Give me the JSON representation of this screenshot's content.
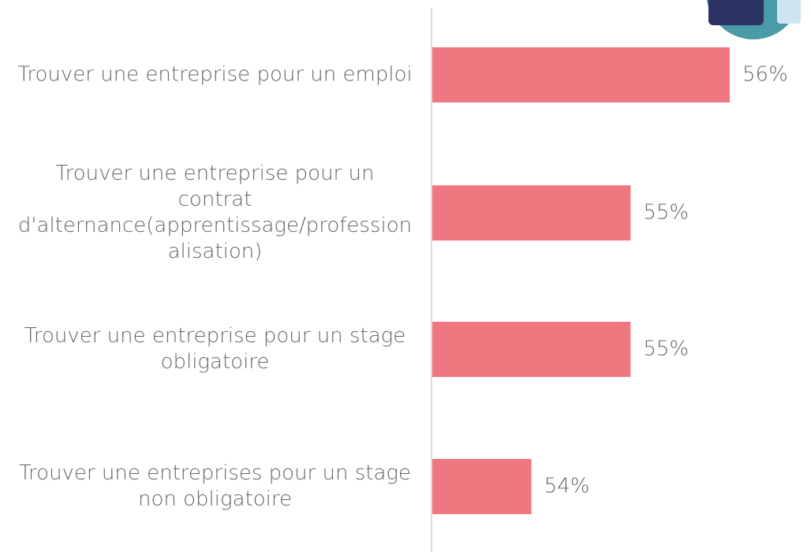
{
  "chart_data": {
    "type": "bar",
    "orientation": "horizontal",
    "categories": [
      "Trouver une entreprise pour un emploi",
      "Trouver une entreprise pour un contrat d'alternance(apprentissage/professionalisation)",
      "Trouver une entreprise pour un stage obligatoire",
      "Trouver une entreprises pour un stage non obligatoire"
    ],
    "values": [
      56,
      55,
      55,
      54
    ],
    "value_labels": [
      "56%",
      "55%",
      "55%",
      "54%"
    ],
    "color": "#ef7880",
    "xlim": [
      53,
      56
    ]
  }
}
